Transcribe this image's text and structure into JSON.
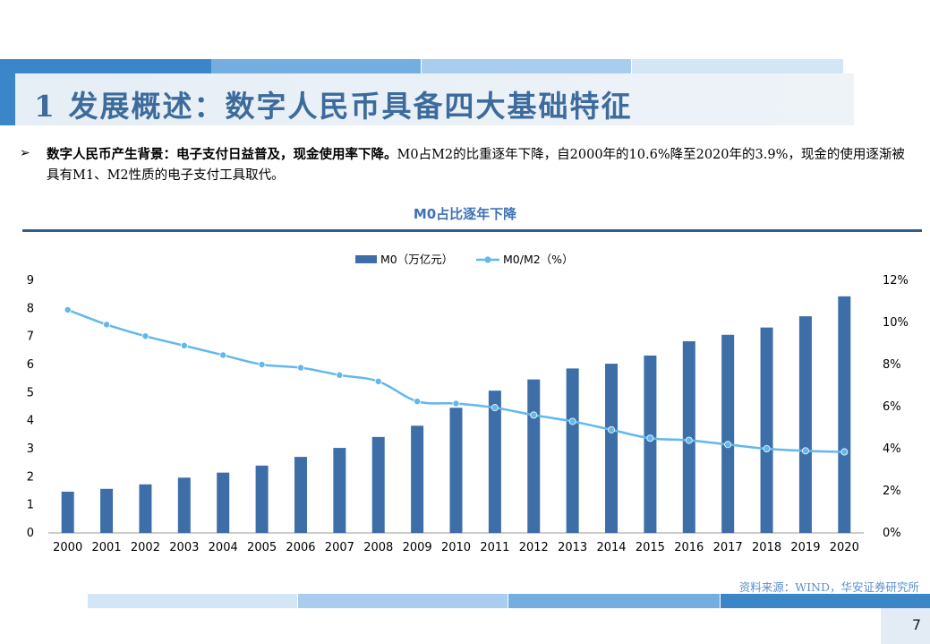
{
  "header": {
    "title": "1 发展概述：数字人民币具备四大基础特征"
  },
  "body": {
    "bullet_symbol": "➢",
    "lead_bold": "数字人民币产生背景：电子支付日益普及，现金使用率下降。",
    "lead_rest": "M0占M2的比重逐年下降，自2000年的10.6%降至2020年的3.9%，现金的使用逐渐被具有M1、M2性质的电子支付工具取代。"
  },
  "chart_title": "M0占比逐年下降",
  "chart_data": {
    "type": "bar",
    "categories": [
      "2000",
      "2001",
      "2002",
      "2003",
      "2004",
      "2005",
      "2006",
      "2007",
      "2008",
      "2009",
      "2010",
      "2011",
      "2012",
      "2013",
      "2014",
      "2015",
      "2016",
      "2017",
      "2018",
      "2019",
      "2020"
    ],
    "series": [
      {
        "name": "M0（万亿元）",
        "type": "bar",
        "axis": "left",
        "color": "#3e6ea8",
        "values": [
          1.47,
          1.57,
          1.73,
          1.97,
          2.15,
          2.4,
          2.71,
          3.03,
          3.42,
          3.82,
          4.46,
          5.07,
          5.47,
          5.86,
          6.03,
          6.32,
          6.83,
          7.06,
          7.32,
          7.72,
          8.43
        ]
      },
      {
        "name": "M0/M2（%）",
        "type": "line",
        "axis": "right",
        "color": "#62b8ec",
        "values": [
          10.6,
          9.9,
          9.35,
          8.9,
          8.45,
          8.0,
          7.85,
          7.5,
          7.2,
          6.25,
          6.15,
          5.95,
          5.6,
          5.3,
          4.9,
          4.5,
          4.4,
          4.2,
          4.0,
          3.9,
          3.85
        ]
      }
    ],
    "y_left": {
      "min": 0,
      "max": 9,
      "ticks": [
        "0",
        "1",
        "2",
        "3",
        "4",
        "5",
        "6",
        "7",
        "8",
        "9"
      ]
    },
    "y_right": {
      "min": 0,
      "max": 12,
      "ticks": [
        "0%",
        "2%",
        "4%",
        "6%",
        "8%",
        "10%",
        "12%"
      ]
    },
    "legend_position": "top-center",
    "grid": false
  },
  "source": "资料来源：WIND，华安证券研究所",
  "page_number": "7",
  "colors": {
    "title": "#3c6b9c",
    "bar": "#3e6ea8",
    "line": "#62b8ec",
    "rule": "#2f5b8f"
  }
}
